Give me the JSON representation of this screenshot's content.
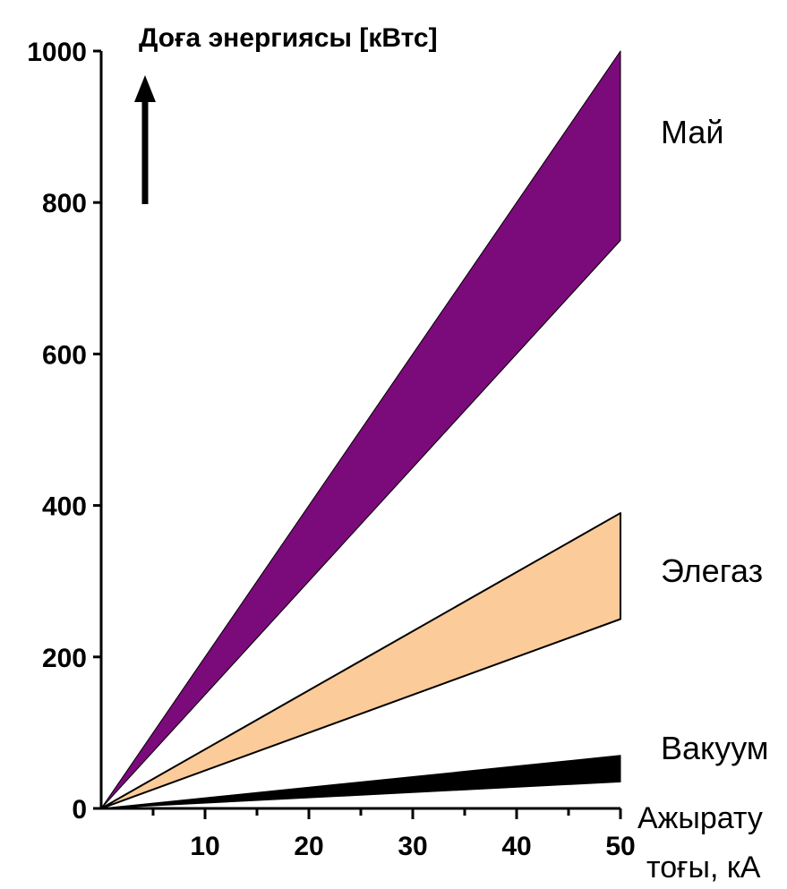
{
  "chart_data": {
    "type": "area",
    "ylabel": "Доға энергиясы [кВтс]",
    "xlabel_lines": [
      "Ажырату",
      "тоғы, кА"
    ],
    "x_ticks": [
      10,
      20,
      30,
      40,
      50
    ],
    "y_ticks": [
      0,
      200,
      400,
      600,
      800,
      1000
    ],
    "xlim": [
      0,
      50
    ],
    "ylim": [
      0,
      1000
    ],
    "grid": false,
    "series": [
      {
        "name": "Май",
        "color": "#7B0A7B",
        "x": [
          0,
          50
        ],
        "lower": [
          0,
          750
        ],
        "upper": [
          0,
          1000
        ]
      },
      {
        "name": "Элегаз",
        "color": "#FCCB9A",
        "x": [
          0,
          50
        ],
        "lower": [
          0,
          250
        ],
        "upper": [
          0,
          390
        ]
      },
      {
        "name": "Вакуум",
        "color": "#000000",
        "x": [
          0,
          50
        ],
        "lower": [
          0,
          35
        ],
        "upper": [
          0,
          70
        ]
      }
    ]
  }
}
